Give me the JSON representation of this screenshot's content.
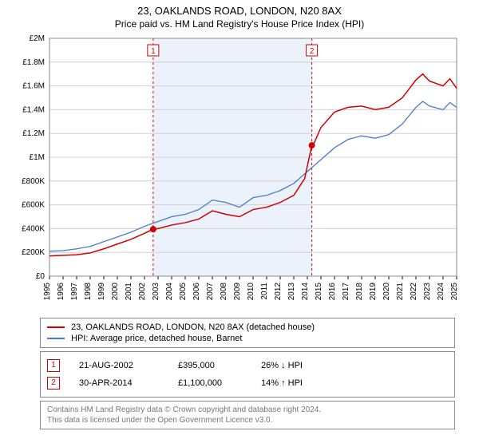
{
  "title_line1": "23, OAKLANDS ROAD, LONDON, N20 8AX",
  "title_line2": "Price paid vs. HM Land Registry's House Price Index (HPI)",
  "chart": {
    "type": "line",
    "background_color": "#ffffff",
    "plot_border_color": "#888888",
    "grid_color": "#d0d0d0",
    "shaded_region_color": "#ecf2fb",
    "reference_line_color": "#d00000",
    "reference_line_dash": "3,3",
    "x_years": [
      "1995",
      "1996",
      "1997",
      "1998",
      "1999",
      "2000",
      "2001",
      "2002",
      "2003",
      "2004",
      "2005",
      "2006",
      "2007",
      "2008",
      "2009",
      "2010",
      "2011",
      "2012",
      "2013",
      "2014",
      "2015",
      "2016",
      "2017",
      "2018",
      "2019",
      "2020",
      "2021",
      "2022",
      "2023",
      "2024",
      "2025"
    ],
    "ylim": [
      0,
      2000000
    ],
    "ytick_step": 200000,
    "ytick_labels": [
      "£0",
      "£200K",
      "£400K",
      "£600K",
      "£800K",
      "£1M",
      "£1.2M",
      "£1.4M",
      "£1.6M",
      "£1.8M",
      "£2M"
    ],
    "label_fontsize": 11,
    "tick_fontsize": 10,
    "series": {
      "property": {
        "color": "#d00000",
        "width": 1.5,
        "label": "23, OAKLANDS ROAD, LONDON, N20 8AX (detached house)",
        "points": [
          [
            1995,
            170000
          ],
          [
            1996,
            175000
          ],
          [
            1997,
            180000
          ],
          [
            1998,
            195000
          ],
          [
            1999,
            230000
          ],
          [
            2000,
            270000
          ],
          [
            2001,
            310000
          ],
          [
            2002,
            360000
          ],
          [
            2002.64,
            395000
          ],
          [
            2003,
            400000
          ],
          [
            2004,
            430000
          ],
          [
            2005,
            450000
          ],
          [
            2006,
            480000
          ],
          [
            2007,
            550000
          ],
          [
            2008,
            520000
          ],
          [
            2009,
            500000
          ],
          [
            2010,
            560000
          ],
          [
            2011,
            580000
          ],
          [
            2012,
            620000
          ],
          [
            2013,
            680000
          ],
          [
            2013.8,
            820000
          ],
          [
            2014.33,
            1100000
          ],
          [
            2014.5,
            1120000
          ],
          [
            2015,
            1250000
          ],
          [
            2016,
            1380000
          ],
          [
            2017,
            1420000
          ],
          [
            2018,
            1430000
          ],
          [
            2019,
            1400000
          ],
          [
            2020,
            1420000
          ],
          [
            2021,
            1500000
          ],
          [
            2022,
            1650000
          ],
          [
            2022.5,
            1700000
          ],
          [
            2023,
            1640000
          ],
          [
            2024,
            1600000
          ],
          [
            2024.5,
            1660000
          ],
          [
            2025,
            1580000
          ]
        ]
      },
      "hpi": {
        "color": "#4a7bc8",
        "width": 1.3,
        "label": "HPI: Average price, detached house, Barnet",
        "points": [
          [
            1995,
            210000
          ],
          [
            1996,
            215000
          ],
          [
            1997,
            230000
          ],
          [
            1998,
            250000
          ],
          [
            1999,
            290000
          ],
          [
            2000,
            330000
          ],
          [
            2001,
            370000
          ],
          [
            2002,
            420000
          ],
          [
            2003,
            460000
          ],
          [
            2004,
            500000
          ],
          [
            2005,
            520000
          ],
          [
            2006,
            560000
          ],
          [
            2007,
            640000
          ],
          [
            2008,
            620000
          ],
          [
            2009,
            580000
          ],
          [
            2010,
            660000
          ],
          [
            2011,
            680000
          ],
          [
            2012,
            720000
          ],
          [
            2013,
            780000
          ],
          [
            2014,
            880000
          ],
          [
            2015,
            980000
          ],
          [
            2016,
            1080000
          ],
          [
            2017,
            1150000
          ],
          [
            2018,
            1180000
          ],
          [
            2019,
            1160000
          ],
          [
            2020,
            1190000
          ],
          [
            2021,
            1280000
          ],
          [
            2022,
            1420000
          ],
          [
            2022.5,
            1470000
          ],
          [
            2023,
            1430000
          ],
          [
            2024,
            1400000
          ],
          [
            2024.5,
            1460000
          ],
          [
            2025,
            1420000
          ]
        ]
      }
    },
    "sale_points": [
      {
        "x": 2002.64,
        "y": 395000,
        "color": "#d00000"
      },
      {
        "x": 2014.33,
        "y": 1100000,
        "color": "#d00000"
      }
    ],
    "reference_lines": [
      {
        "x": 2002.64,
        "marker": "1"
      },
      {
        "x": 2014.33,
        "marker": "2"
      }
    ]
  },
  "legend": {
    "series1_label": "23, OAKLANDS ROAD, LONDON, N20 8AX (detached house)",
    "series1_color": "#d00000",
    "series2_label": "HPI: Average price, detached house, Barnet",
    "series2_color": "#4a7bc8"
  },
  "sales": [
    {
      "marker": "1",
      "date": "21-AUG-2002",
      "price": "£395,000",
      "diff": "26% ↓ HPI"
    },
    {
      "marker": "2",
      "date": "30-APR-2014",
      "price": "£1,100,000",
      "diff": "14% ↑ HPI"
    }
  ],
  "attribution_line1": "Contains HM Land Registry data © Crown copyright and database right 2024.",
  "attribution_line2": "This data is licensed under the Open Government Licence v3.0."
}
